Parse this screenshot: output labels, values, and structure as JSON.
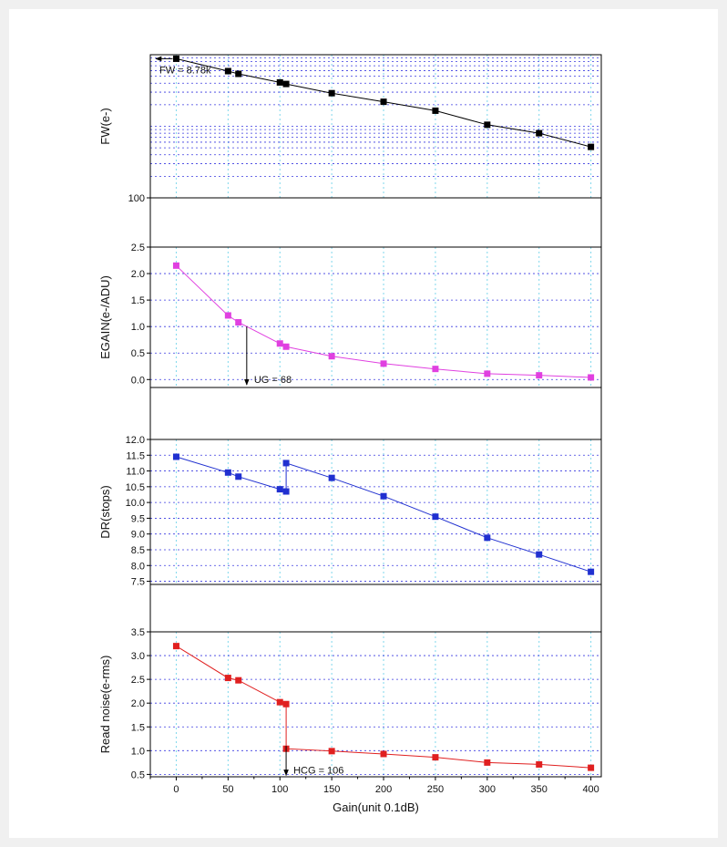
{
  "figure": {
    "xlabel": "Gain(unit 0.1dB)",
    "xticks": [
      0,
      50,
      100,
      150,
      200,
      250,
      300,
      350,
      400
    ],
    "xlim": [
      -25,
      410
    ]
  },
  "chart_data": [
    {
      "type": "line",
      "ylabel": "FW(e-)",
      "yscale": "log",
      "ylim": [
        100,
        10000
      ],
      "yticks": [
        100
      ],
      "color": "#000000",
      "x": [
        0,
        50,
        60,
        100,
        106,
        150,
        200,
        250,
        300,
        350,
        400
      ],
      "y": [
        8780,
        5900,
        5400,
        4100,
        3900,
        2900,
        2200,
        1650,
        1050,
        800,
        515
      ],
      "annotation": {
        "text": "FW = 8.78k",
        "arrow": "left",
        "x": 0,
        "y": 8780
      }
    },
    {
      "type": "line",
      "ylabel": "EGAIN(e-/ADU)",
      "ylim": [
        -0.15,
        2.5
      ],
      "yticks": [
        0.0,
        0.5,
        1.0,
        1.5,
        2.0,
        2.5
      ],
      "tick_labels": [
        "0.0",
        "0.5",
        "1.0",
        "1.5",
        "2.0",
        "2.5"
      ],
      "color": "#e040e0",
      "x": [
        0,
        50,
        60,
        100,
        106,
        150,
        200,
        250,
        300,
        350,
        400
      ],
      "y": [
        2.15,
        1.21,
        1.08,
        0.68,
        0.62,
        0.44,
        0.3,
        0.2,
        0.11,
        0.08,
        0.04
      ],
      "annotation": {
        "text": "UG = 68",
        "arrow": "down",
        "x": 68,
        "y_from": 1.0,
        "y_to": -0.1
      }
    },
    {
      "type": "line",
      "ylabel": "DR(stops)",
      "ylim": [
        7.4,
        12.0
      ],
      "yticks": [
        7.5,
        8.0,
        8.5,
        9.0,
        9.5,
        10.0,
        10.5,
        11.0,
        11.5,
        12.0
      ],
      "tick_labels": [
        "7.5",
        "8.0",
        "8.5",
        "9.0",
        "9.5",
        "10.0",
        "10.5",
        "11.0",
        "11.5",
        "12.0"
      ],
      "color": "#2030d0",
      "x": [
        0,
        50,
        60,
        100,
        106,
        106,
        150,
        200,
        250,
        300,
        350,
        400
      ],
      "y": [
        11.45,
        10.95,
        10.82,
        10.42,
        10.35,
        11.25,
        10.78,
        10.2,
        9.55,
        8.88,
        8.35,
        7.8
      ]
    },
    {
      "type": "line",
      "ylabel": "Read noise(e-rms)",
      "ylim": [
        0.45,
        3.5
      ],
      "yticks": [
        0.5,
        1.0,
        1.5,
        2.0,
        2.5,
        3.0,
        3.5
      ],
      "tick_labels": [
        "0.5",
        "1.0",
        "1.5",
        "2.0",
        "2.5",
        "3.0",
        "3.5"
      ],
      "color": "#e02020",
      "x": [
        0,
        50,
        60,
        100,
        106,
        106,
        150,
        200,
        250,
        300,
        350,
        400
      ],
      "y": [
        3.2,
        2.53,
        2.48,
        2.02,
        1.98,
        1.04,
        0.99,
        0.93,
        0.86,
        0.75,
        0.71,
        0.64
      ],
      "annotation": {
        "text": "HCG = 106",
        "arrow": "down",
        "x": 106,
        "y_from": 1.1,
        "y_to": 0.48
      }
    }
  ]
}
